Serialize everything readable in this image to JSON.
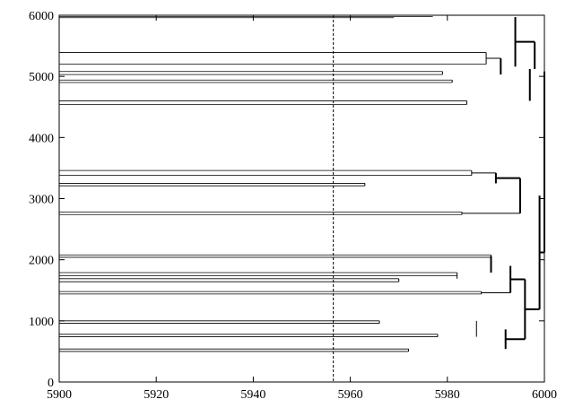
{
  "chart_data": {
    "type": "dendrogram",
    "title": "",
    "xlabel": "",
    "ylabel": "",
    "xlim": [
      5900,
      6000
    ],
    "ylim": [
      0,
      6000
    ],
    "x_ticks": [
      5900,
      5920,
      5940,
      5960,
      5980,
      6000
    ],
    "y_ticks": [
      0,
      1000,
      2000,
      3000,
      4000,
      5000,
      6000
    ],
    "grid": false,
    "threshold_x": 5956.5,
    "leaves": [
      {
        "y": 5980,
        "x": 5977
      },
      {
        "y": 5960,
        "x": 5969
      },
      {
        "y": 5390,
        "x": 5900
      },
      {
        "y": 5200,
        "x": 5900
      },
      {
        "y": 5080,
        "x": 5979
      },
      {
        "y": 5030,
        "x": 5900
      },
      {
        "y": 4940,
        "x": 5981
      },
      {
        "y": 4900,
        "x": 5971
      },
      {
        "y": 4600,
        "x": 5984
      },
      {
        "y": 4540,
        "x": 5976
      },
      {
        "y": 3460,
        "x": 5900
      },
      {
        "y": 3380,
        "x": 5985
      },
      {
        "y": 3250,
        "x": 5900
      },
      {
        "y": 3210,
        "x": 5963
      },
      {
        "y": 2780,
        "x": 5983
      },
      {
        "y": 2740,
        "x": 5974
      },
      {
        "y": 2080,
        "x": 5962
      },
      {
        "y": 2040,
        "x": 5900
      },
      {
        "y": 1790,
        "x": 5955
      },
      {
        "y": 1740,
        "x": 5982
      },
      {
        "y": 1690,
        "x": 5970
      },
      {
        "y": 1640,
        "x": 5906
      },
      {
        "y": 1480,
        "x": 5951
      },
      {
        "y": 1440,
        "x": 5925
      },
      {
        "y": 1000,
        "x": 5900
      },
      {
        "y": 960,
        "x": 5966
      },
      {
        "y": 780,
        "x": 5978
      },
      {
        "y": 740,
        "x": 5900
      },
      {
        "y": 540,
        "x": 5972
      },
      {
        "y": 500,
        "x": 5961
      }
    ],
    "merges": [
      {
        "x": 5985,
        "y_low": 3380,
        "y_high": 3460,
        "thick": false
      },
      {
        "x": 5990,
        "y_low": 3250,
        "y_high": 3420,
        "thick": true
      },
      {
        "x": 5963,
        "y_low": 3210,
        "y_high": 3250,
        "thick": false
      },
      {
        "x": 5983,
        "y_low": 2740,
        "y_high": 2780,
        "thick": false
      },
      {
        "x": 5995,
        "y_low": 2760,
        "y_high": 3335,
        "thick": true
      },
      {
        "x": 5988,
        "y_low": 5200,
        "y_high": 5390,
        "thick": false
      },
      {
        "x": 5991,
        "y_low": 5030,
        "y_high": 5295,
        "thick": true
      },
      {
        "x": 5979,
        "y_low": 5030,
        "y_high": 5080,
        "thick": false
      },
      {
        "x": 5981,
        "y_low": 4900,
        "y_high": 4940,
        "thick": false
      },
      {
        "x": 5994,
        "y_low": 5160,
        "y_high": 5970,
        "thick": true
      },
      {
        "x": 5998,
        "y_low": 5120,
        "y_high": 5565,
        "thick": true
      },
      {
        "x": 5984,
        "y_low": 4540,
        "y_high": 4600,
        "thick": false
      },
      {
        "x": 5997,
        "y_low": 4600,
        "y_high": 5120,
        "thick": true
      },
      {
        "x": 5989,
        "y_low": 2040,
        "y_high": 2080,
        "thick": false
      },
      {
        "x": 5989,
        "y_low": 1790,
        "y_high": 2060,
        "thick": true
      },
      {
        "x": 5982,
        "y_low": 1690,
        "y_high": 1790,
        "thick": false
      },
      {
        "x": 5970,
        "y_low": 1640,
        "y_high": 1690,
        "thick": false
      },
      {
        "x": 5987,
        "y_low": 1440,
        "y_high": 1480,
        "thick": false
      },
      {
        "x": 5993,
        "y_low": 1460,
        "y_high": 1900,
        "thick": true
      },
      {
        "x": 5986,
        "y_low": 740,
        "y_high": 1000,
        "thick": false
      },
      {
        "x": 5966,
        "y_low": 960,
        "y_high": 1000,
        "thick": false
      },
      {
        "x": 5978,
        "y_low": 740,
        "y_high": 780,
        "thick": false
      },
      {
        "x": 5992,
        "y_low": 540,
        "y_high": 860,
        "thick": true
      },
      {
        "x": 5972,
        "y_low": 500,
        "y_high": 540,
        "thick": false
      },
      {
        "x": 5996,
        "y_low": 700,
        "y_high": 1680,
        "thick": true
      },
      {
        "x": 5999,
        "y_low": 1190,
        "y_high": 3050,
        "thick": true
      },
      {
        "x": 6000,
        "y_low": 2120,
        "y_high": 5080,
        "thick": true
      }
    ]
  }
}
